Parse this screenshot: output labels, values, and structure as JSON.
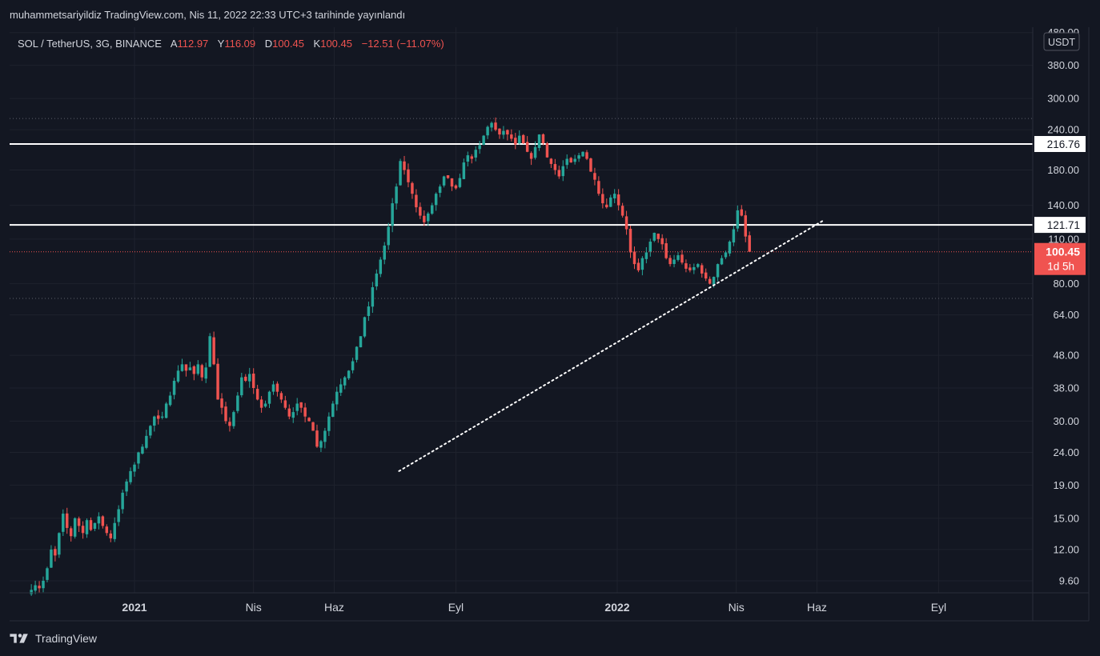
{
  "header": {
    "publish_line": "muhammetsariyildiz TradingView.com, Nis 11, 2022 22:33 UTC+3 tarihinde yayınlandı"
  },
  "legend": {
    "symbol": "SOL / TetherUS, 3G, BINANCE",
    "open_label": "A",
    "open": "112.97",
    "high_label": "Y",
    "high": "116.09",
    "low_label": "D",
    "low": "100.45",
    "close_label": "K",
    "close": "100.45",
    "change": "−12.51 (−11.07%)"
  },
  "currency_badge": "USDT",
  "footer": {
    "brand": "TradingView"
  },
  "colors": {
    "background": "#131722",
    "up": "#26a69a",
    "down": "#ef5350",
    "grid": "#1e222d",
    "text": "#d1d4dc",
    "last_price_badge": "#f05350"
  },
  "chart_data": {
    "type": "candlestick",
    "y_scale": "log",
    "ylim": [
      8.5,
      500
    ],
    "y_ticks": [
      "9.60",
      "12.00",
      "15.00",
      "19.00",
      "24.00",
      "30.00",
      "38.00",
      "48.00",
      "64.00",
      "80.00",
      "110.00",
      "140.00",
      "180.00",
      "240.00",
      "300.00",
      "380.00",
      "480.00"
    ],
    "x_ticks": [
      "2021",
      "Nis",
      "Haz",
      "Eyl",
      "2022",
      "Nis",
      "Haz",
      "Eyl"
    ],
    "x_ticks_bold": [
      "2021",
      "2022"
    ],
    "price_levels": [
      {
        "value": 216.76,
        "label": "216.76",
        "style": "solid-white"
      },
      {
        "value": 121.71,
        "label": "121.71",
        "style": "solid-white"
      },
      {
        "value": 260,
        "label": "",
        "style": "dotted-grey"
      },
      {
        "value": 72,
        "label": "",
        "style": "dotted-grey"
      }
    ],
    "last_price": {
      "value": 100.45,
      "label": "100.45",
      "countdown": "1d 5h"
    },
    "trendline": {
      "from": {
        "date": "2021-07-20",
        "price": 21
      },
      "to": {
        "date": "2022-06-05",
        "price": 125
      }
    },
    "candle_interval_days": 3,
    "candles_ohlc_closes": [
      9,
      9.3,
      9.1,
      9.6,
      10.5,
      12,
      11.5,
      13.5,
      15.5,
      14,
      13.2,
      15,
      14.2,
      13.5,
      14.8,
      13.8,
      14.5,
      15.2,
      14.2,
      13.5,
      13,
      14.5,
      16,
      18,
      19.5,
      21,
      22,
      24,
      25,
      27,
      29,
      31,
      30.5,
      31,
      34,
      36,
      40,
      43,
      45,
      43,
      44,
      42,
      45,
      41,
      44,
      55,
      45,
      35,
      33,
      30,
      29,
      32,
      36,
      41,
      40,
      42,
      38,
      35,
      33,
      34,
      37,
      39,
      37,
      35,
      33,
      31,
      32,
      34,
      33,
      31,
      30,
      28,
      25,
      26,
      28,
      31,
      34,
      37,
      39,
      41,
      43,
      46,
      51,
      55,
      63,
      68,
      78,
      86,
      95,
      105,
      120,
      142,
      160,
      192,
      180,
      165,
      152,
      138,
      130,
      124,
      132,
      140,
      152,
      160,
      172,
      170,
      160,
      158,
      170,
      190,
      200,
      195,
      208,
      215,
      230,
      245,
      252,
      240,
      232,
      238,
      232,
      225,
      216,
      230,
      218,
      205,
      195,
      212,
      232,
      218,
      197,
      188,
      180,
      172,
      185,
      195,
      190,
      195,
      200,
      205,
      195,
      178,
      168,
      152,
      142,
      138,
      148,
      152,
      140,
      130,
      118,
      100,
      92,
      88,
      96,
      100,
      108,
      115,
      110,
      106,
      96,
      92,
      95,
      98,
      93,
      89,
      88,
      90,
      92,
      86,
      83,
      80,
      84,
      92,
      96,
      100,
      108,
      118,
      135,
      130,
      112,
      100.45
    ],
    "volatility": 0.045
  }
}
